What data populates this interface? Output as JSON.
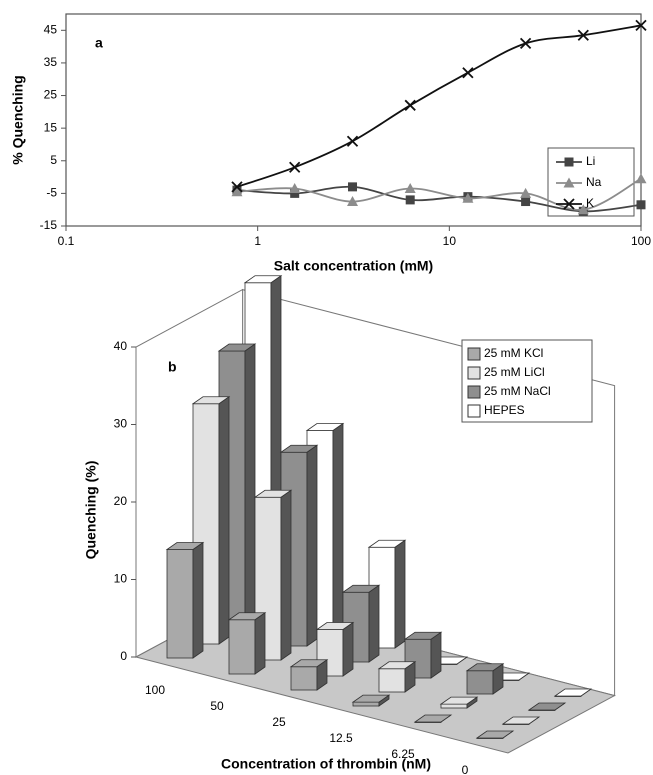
{
  "chart_data": [
    {
      "type": "line",
      "annotation": "a",
      "xlabel": "Salt concentration (mM)",
      "ylabel": "% Quenching",
      "log_x": true,
      "xlim": [
        0.1,
        100
      ],
      "xticks": [
        0.1,
        1,
        10,
        100
      ],
      "ylim": [
        -15,
        50
      ],
      "yticks": [
        -15,
        -5,
        5,
        15,
        25,
        35,
        45
      ],
      "x": [
        0.78,
        1.56,
        3.125,
        6.25,
        12.5,
        25,
        50,
        100
      ],
      "smooth": true,
      "legend": "right",
      "series": [
        {
          "name": "Li",
          "color": "#444444",
          "marker": "square",
          "values": [
            -4,
            -5,
            -3,
            -7,
            -6,
            -7.5,
            -10.5,
            -8.5
          ]
        },
        {
          "name": "Na",
          "color": "#8c8c8c",
          "marker": "triangle",
          "values": [
            -4.5,
            -3.5,
            -7.5,
            -3.5,
            -6.5,
            -5,
            -10,
            -0.5
          ]
        },
        {
          "name": "K",
          "color": "#111111",
          "marker": "x",
          "values": [
            -3,
            3,
            11,
            22,
            32,
            41,
            43.5,
            46.5
          ]
        }
      ]
    },
    {
      "type": "bar3d",
      "annotation": "b",
      "xlabel": "Concentration of thrombin (nM)",
      "ylabel": "Quenching (%)",
      "categories": [
        "100",
        "50",
        "25",
        "12.5",
        "6.25",
        "0"
      ],
      "ylim": [
        0,
        40
      ],
      "yticks": [
        0,
        10,
        20,
        30,
        40
      ],
      "legend": "upper right",
      "series": [
        {
          "name": "25 mM KCl",
          "color": "#a9a9a9",
          "values": [
            14,
            7,
            3,
            0.5,
            0,
            0
          ]
        },
        {
          "name": "25 mM LiCl",
          "color": "#e2e2e2",
          "values": [
            31,
            21,
            6,
            3,
            0.5,
            0
          ]
        },
        {
          "name": "25 mM NaCl",
          "color": "#8f8f8f",
          "values": [
            36,
            25,
            9,
            5,
            3,
            0
          ]
        },
        {
          "name": "HEPES",
          "color": "#ffffff",
          "values": [
            43,
            26,
            13,
            0,
            0,
            0
          ]
        }
      ]
    }
  ]
}
